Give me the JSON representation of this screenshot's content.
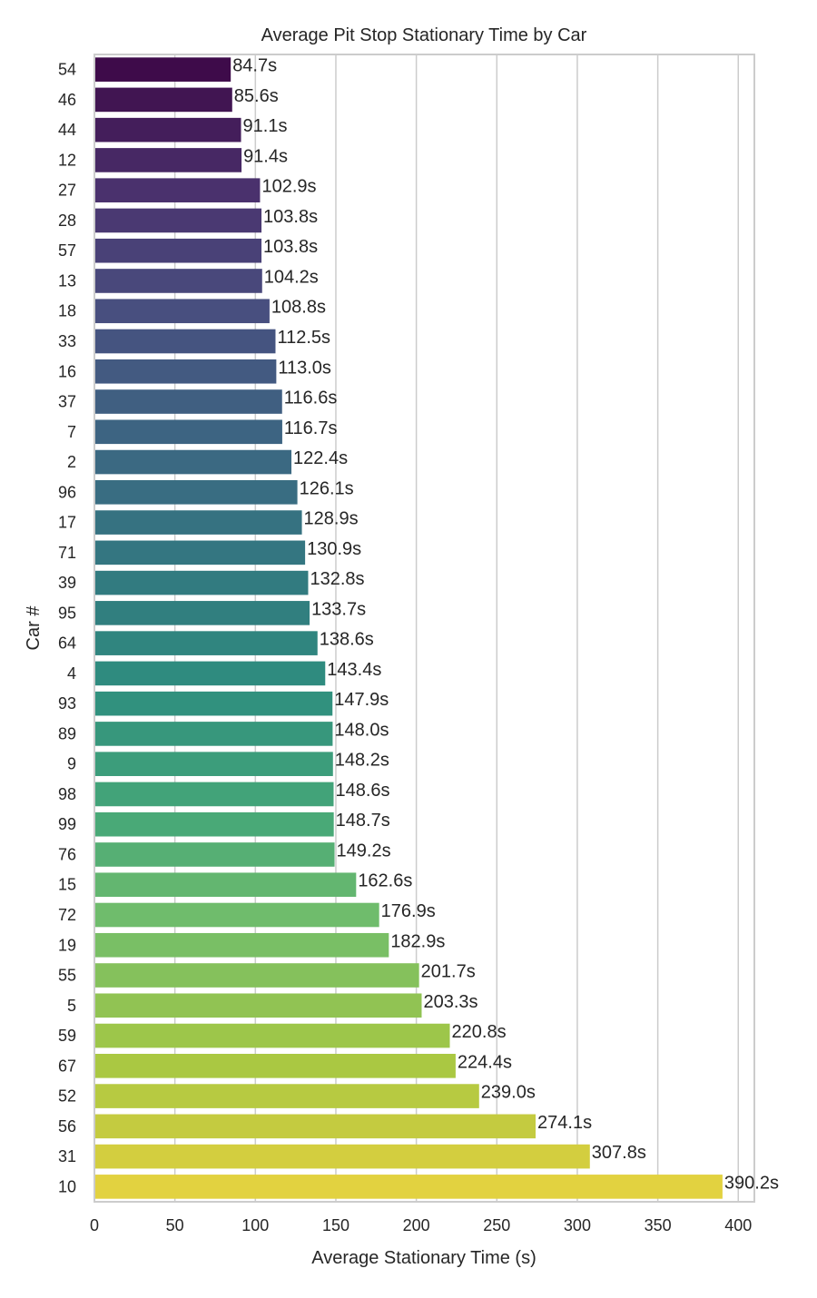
{
  "chart_data": {
    "type": "bar",
    "orientation": "horizontal",
    "title": "Average Pit Stop Stationary Time by Car",
    "xlabel": "Average Stationary Time (s)",
    "ylabel": "Car #",
    "xlim": [
      0,
      410
    ],
    "xticks": [
      0,
      50,
      100,
      150,
      200,
      250,
      300,
      350,
      400
    ],
    "grid": "x",
    "palette": "viridis",
    "value_suffix": "s",
    "categories": [
      "54",
      "46",
      "44",
      "12",
      "27",
      "28",
      "57",
      "13",
      "18",
      "33",
      "16",
      "37",
      "7",
      "2",
      "96",
      "17",
      "71",
      "39",
      "95",
      "64",
      "4",
      "93",
      "89",
      "9",
      "98",
      "99",
      "76",
      "15",
      "72",
      "19",
      "55",
      "5",
      "59",
      "67",
      "52",
      "56",
      "31",
      "10"
    ],
    "values": [
      84.7,
      85.6,
      91.1,
      91.4,
      102.9,
      103.8,
      103.8,
      104.2,
      108.8,
      112.5,
      113.0,
      116.6,
      116.7,
      122.4,
      126.1,
      128.9,
      130.9,
      132.8,
      133.7,
      138.6,
      143.4,
      147.9,
      148.0,
      148.2,
      148.6,
      148.7,
      149.2,
      162.6,
      176.9,
      182.9,
      201.7,
      203.3,
      220.8,
      224.4,
      239.0,
      274.1,
      307.8,
      390.2
    ],
    "data_labels": [
      "84.7s",
      "85.6s",
      "91.1s",
      "91.4s",
      "102.9s",
      "103.8s",
      "103.8s",
      "104.2s",
      "108.8s",
      "112.5s",
      "113.0s",
      "116.6s",
      "116.7s",
      "122.4s",
      "126.1s",
      "128.9s",
      "130.9s",
      "132.8s",
      "133.7s",
      "138.6s",
      "143.4s",
      "147.9s",
      "148.0s",
      "148.2s",
      "148.6s",
      "148.7s",
      "149.2s",
      "162.6s",
      "176.9s",
      "182.9s",
      "201.7s",
      "203.3s",
      "220.8s",
      "224.4s",
      "239.0s",
      "274.1s",
      "307.8s",
      "390.2s"
    ]
  }
}
